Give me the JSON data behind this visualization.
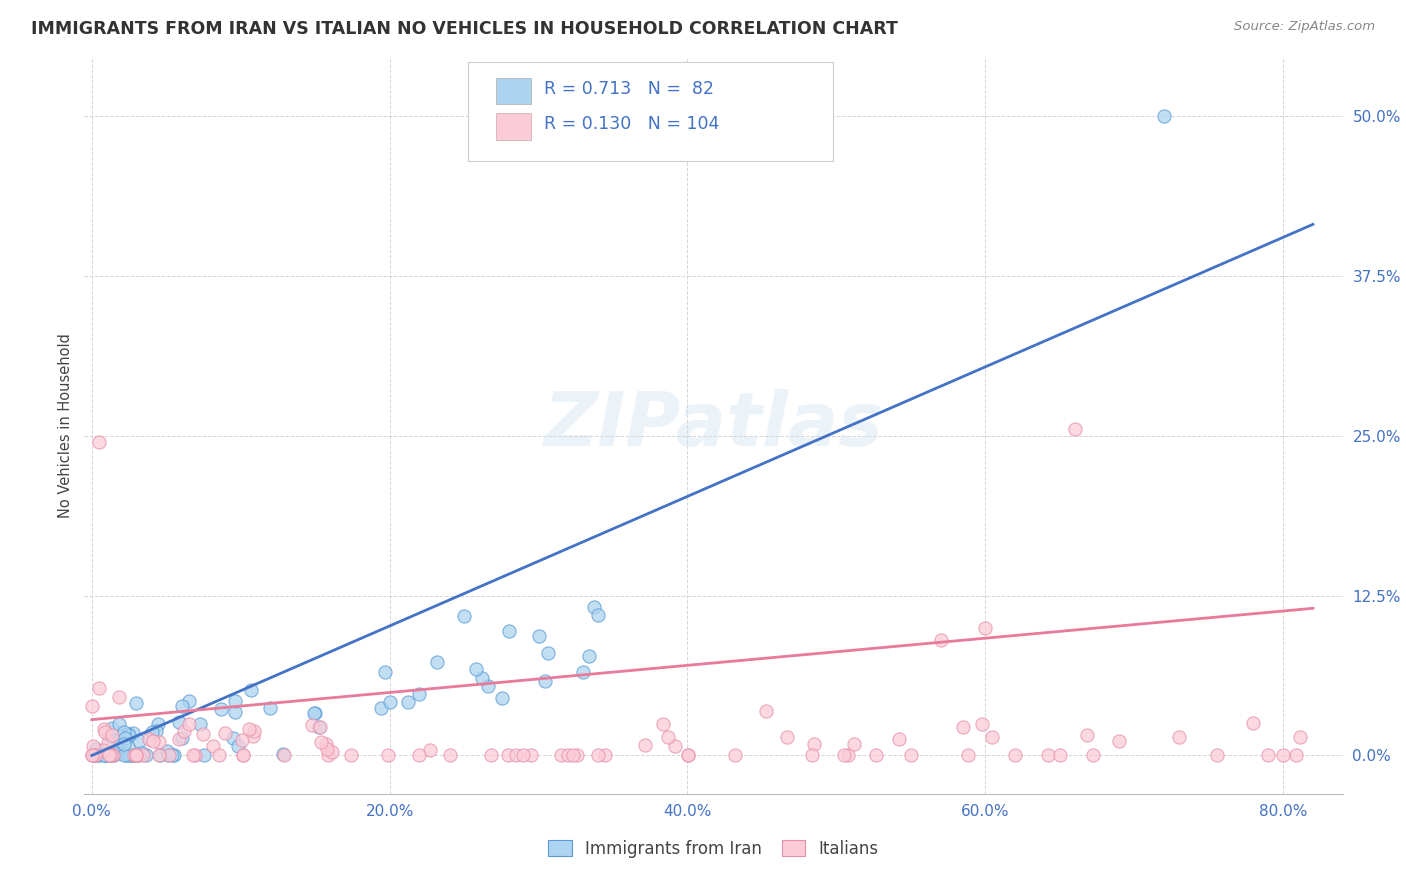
{
  "title": "IMMIGRANTS FROM IRAN VS ITALIAN NO VEHICLES IN HOUSEHOLD CORRELATION CHART",
  "source": "Source: ZipAtlas.com",
  "ylabel": "No Vehicles in Household",
  "xlim": [
    -0.005,
    0.84
  ],
  "ylim": [
    -0.03,
    0.545
  ],
  "xticks": [
    0.0,
    0.2,
    0.4,
    0.6,
    0.8
  ],
  "yticks": [
    0.0,
    0.125,
    0.25,
    0.375,
    0.5
  ],
  "xtick_labels": [
    "0.0%",
    "20.0%",
    "40.0%",
    "60.0%",
    "80.0%"
  ],
  "ytick_labels": [
    "0.0%",
    "12.5%",
    "25.0%",
    "37.5%",
    "50.0%"
  ],
  "blue_face_color": "#ADD4F0",
  "blue_edge_color": "#5B9BD5",
  "pink_face_color": "#FBCCD8",
  "pink_edge_color": "#E88FAA",
  "blue_line_color": "#4472C4",
  "pink_line_color": "#E87A9A",
  "blue_R": 0.713,
  "blue_N": 82,
  "pink_R": 0.13,
  "pink_N": 104,
  "blue_line_x0": 0.0,
  "blue_line_x1": 0.82,
  "blue_line_y0": 0.0,
  "blue_line_y1": 0.415,
  "pink_line_x0": 0.0,
  "pink_line_x1": 0.82,
  "pink_line_y0": 0.028,
  "pink_line_y1": 0.115,
  "legend_label_blue": "Immigrants from Iran",
  "legend_label_pink": "Italians",
  "watermark": "ZIPatlas",
  "grid_color": "#CCCCCC",
  "bg_color": "#FFFFFF",
  "title_color": "#333333",
  "source_color": "#888888",
  "tick_color": "#4472C4",
  "ylabel_color": "#444444"
}
